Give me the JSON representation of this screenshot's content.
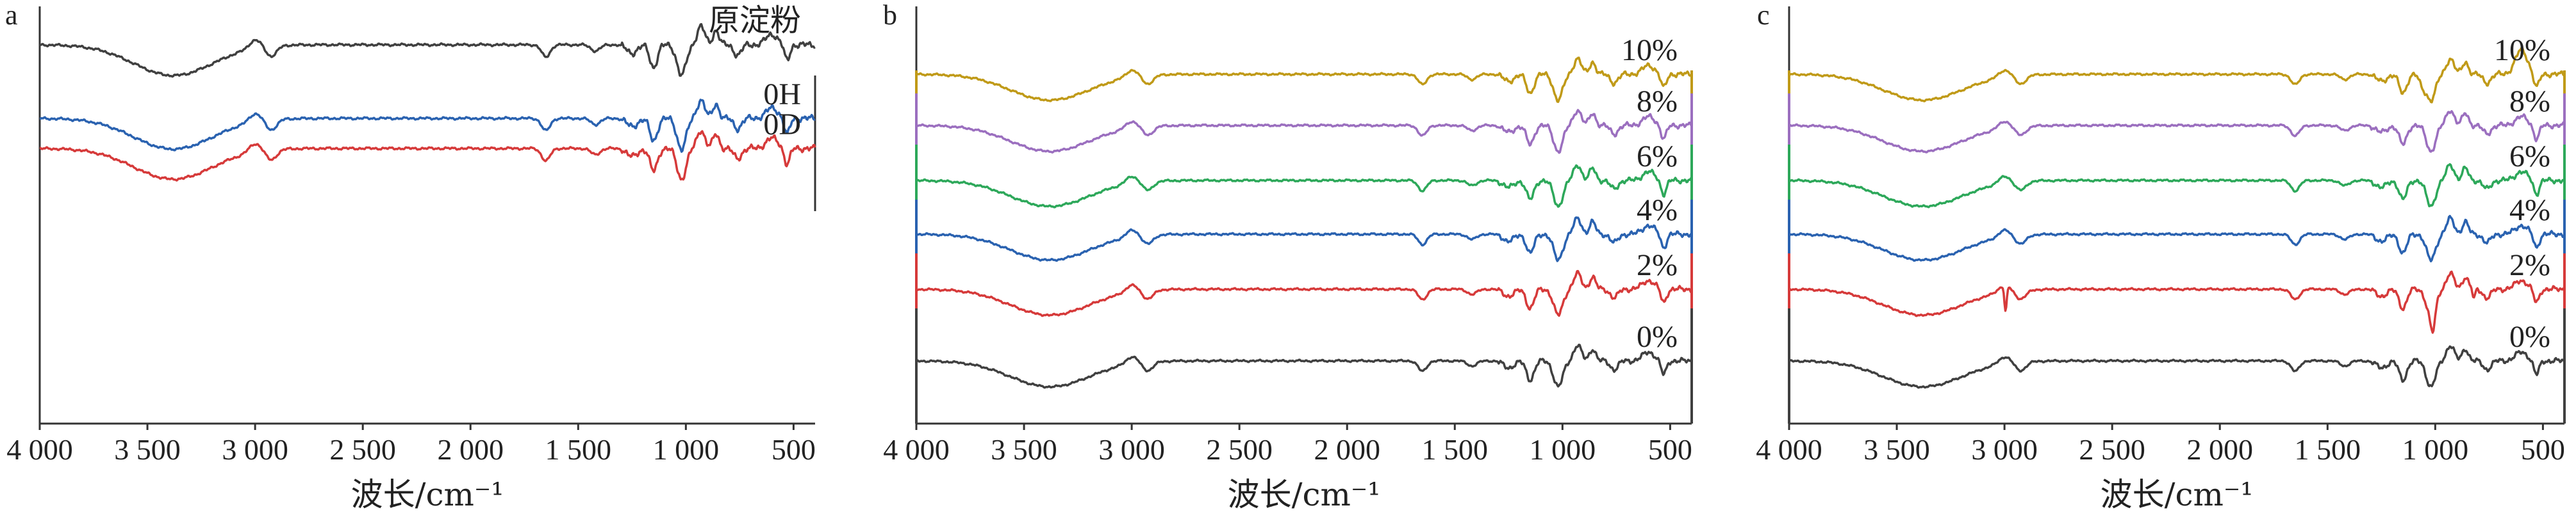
{
  "chart_data": [
    {
      "panel": "a",
      "type": "line",
      "xlabel": "波长/cm⁻¹",
      "x_ticks": [
        4000,
        3500,
        3000,
        2500,
        2000,
        1500,
        1000,
        500
      ],
      "x_tick_labels": [
        "4 000",
        "3 500",
        "3 000",
        "2 500",
        "2 000",
        "1 500",
        "1 000",
        "500"
      ],
      "xlim": [
        4000,
        400
      ],
      "series": [
        {
          "name": "原淀粉",
          "color": "#404040",
          "offset": 70
        },
        {
          "name": "0H",
          "color": "#2a62b0",
          "offset": 185
        },
        {
          "name": "0D",
          "color": "#d63a3a",
          "offset": 232
        }
      ]
    },
    {
      "panel": "b",
      "type": "line",
      "xlabel": "波长/cm⁻¹",
      "x_ticks": [
        4000,
        3500,
        3000,
        2500,
        2000,
        1500,
        1000,
        500
      ],
      "x_tick_labels": [
        "4 000",
        "3 500",
        "3 000",
        "2 500",
        "2 000",
        "1 500",
        "1 000",
        "500"
      ],
      "xlim": [
        4000,
        400
      ],
      "series": [
        {
          "name": "10%",
          "color": "#c09a18",
          "offset": 116
        },
        {
          "name": "8%",
          "color": "#9b6fbf",
          "offset": 196
        },
        {
          "name": "6%",
          "color": "#2da85a",
          "offset": 282
        },
        {
          "name": "4%",
          "color": "#2a62b0",
          "offset": 366
        },
        {
          "name": "2%",
          "color": "#d63a3a",
          "offset": 452
        },
        {
          "name": "0%",
          "color": "#404040",
          "offset": 564
        }
      ]
    },
    {
      "panel": "c",
      "type": "line",
      "xlabel": "波长/cm⁻¹",
      "x_ticks": [
        4000,
        3500,
        3000,
        2500,
        2000,
        1500,
        1000,
        500
      ],
      "x_tick_labels": [
        "4 000",
        "3 500",
        "3 000",
        "2 500",
        "2 000",
        "1 500",
        "1 000",
        "500"
      ],
      "xlim": [
        4000,
        400
      ],
      "series": [
        {
          "name": "10%",
          "color": "#c09a18",
          "offset": 116
        },
        {
          "name": "8%",
          "color": "#9b6fbf",
          "offset": 196
        },
        {
          "name": "6%",
          "color": "#2da85a",
          "offset": 282
        },
        {
          "name": "4%",
          "color": "#2a62b0",
          "offset": 366
        },
        {
          "name": "2%",
          "color": "#d63a3a",
          "offset": 452
        },
        {
          "name": "0%",
          "color": "#404040",
          "offset": 564
        }
      ]
    }
  ]
}
